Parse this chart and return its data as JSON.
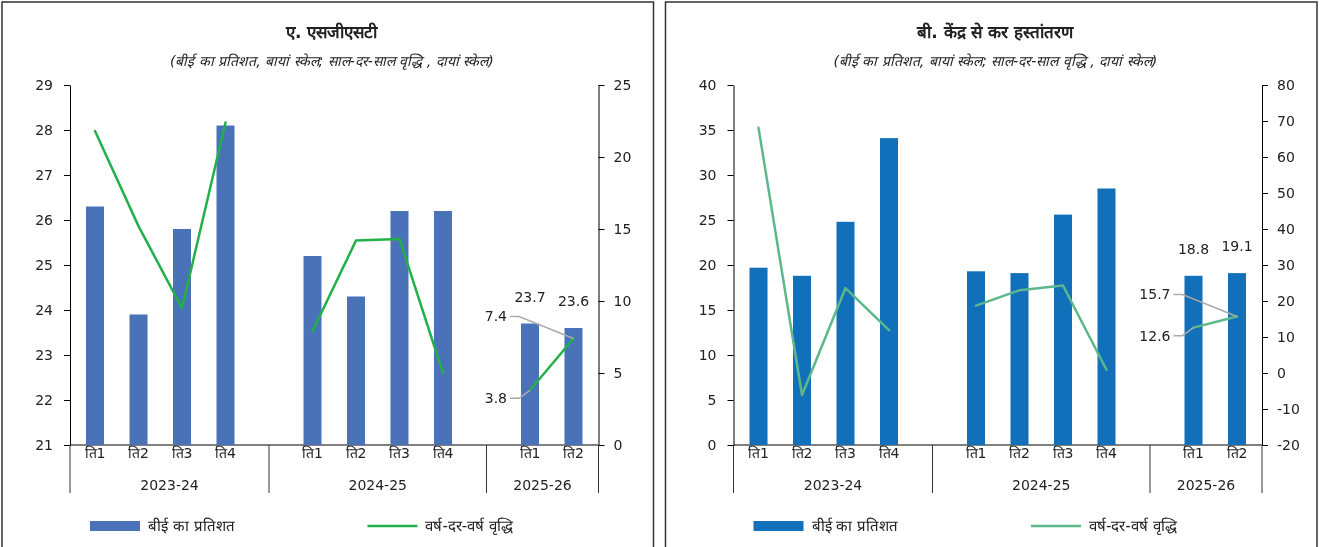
{
  "chart_data": [
    {
      "type": "bar",
      "title": "ए. एसजीएसटी",
      "subtitle": "(बीई का प्रतिशत, बायां स्केल; साल-दर-साल वृद्धि , दायां स्केल)",
      "categories": [
        "ति1",
        "ति2",
        "ति3",
        "ति4",
        null,
        "ति1",
        "ति2",
        "ति3",
        "ति4",
        null,
        "ति1",
        "ति2"
      ],
      "series": [
        {
          "name": "बीई का प्रतिशत",
          "color": "#4a72b8",
          "values": [
            26.3,
            23.9,
            25.8,
            28.1,
            null,
            25.2,
            24.3,
            26.2,
            26.2,
            null,
            23.7,
            23.6
          ],
          "value_labels": [
            null,
            null,
            null,
            null,
            null,
            null,
            null,
            null,
            null,
            null,
            "23.7",
            "23.6"
          ]
        },
        {
          "name": "वर्ष-दर-वर्ष वृद्धि",
          "type": "line",
          "axis": "y2",
          "color": "#22b04b",
          "values": [
            21.8,
            15.2,
            9.5,
            22.4,
            null,
            7.9,
            14.2,
            14.3,
            5.0,
            null,
            3.8,
            7.4
          ],
          "value_labels": [
            null,
            null,
            null,
            null,
            null,
            null,
            null,
            null,
            null,
            null,
            "3.8",
            "7.4"
          ]
        }
      ],
      "ylim": [
        21,
        29
      ],
      "yticks": [
        21,
        22,
        23,
        24,
        25,
        26,
        27,
        28,
        29
      ],
      "y2lim": [
        0,
        25
      ],
      "y2ticks": [
        0,
        5,
        10,
        15,
        20,
        25
      ],
      "annotations": [
        "2023-24",
        "2024-25",
        "2025-26"
      ],
      "legend": "bottom"
    },
    {
      "type": "bar",
      "title": "बी. केंद्र से कर हस्तांतरण",
      "subtitle": "(बीई का प्रतिशत, बायां स्केल; साल-दर-साल वृद्धि , दायां स्केल)",
      "categories": [
        "ति1",
        "ति2",
        "ति3",
        "ति4",
        null,
        "ति1",
        "ति2",
        "ति3",
        "ति4",
        null,
        "ति1",
        "ति2"
      ],
      "series": [
        {
          "name": "बीई का प्रतिशत",
          "color": "#1170b9",
          "values": [
            19.7,
            18.8,
            24.8,
            34.1,
            null,
            19.3,
            19.1,
            25.6,
            28.5,
            null,
            18.8,
            19.1
          ],
          "value_labels": [
            null,
            null,
            null,
            null,
            null,
            null,
            null,
            null,
            null,
            null,
            "18.8",
            "19.1"
          ]
        },
        {
          "name": "वर्ष-दर-वर्ष वृद्धि",
          "type": "line",
          "axis": "y2",
          "color": "#5cb88a",
          "values": [
            68.1,
            -6.1,
            23.6,
            11.9,
            null,
            18.7,
            23.0,
            24.3,
            0.9,
            null,
            12.6,
            15.7
          ],
          "value_labels": [
            null,
            null,
            null,
            null,
            null,
            null,
            null,
            null,
            null,
            null,
            "12.6",
            "15.7"
          ]
        }
      ],
      "ylim": [
        0,
        40
      ],
      "yticks": [
        0,
        5,
        10,
        15,
        20,
        25,
        30,
        35,
        40
      ],
      "y2lim": [
        -20,
        80
      ],
      "y2ticks": [
        -20,
        -10,
        0,
        10,
        20,
        30,
        40,
        50,
        60,
        70,
        80
      ],
      "annotations": [
        "2023-24",
        "2024-25",
        "2025-26"
      ],
      "legend": "bottom"
    }
  ]
}
